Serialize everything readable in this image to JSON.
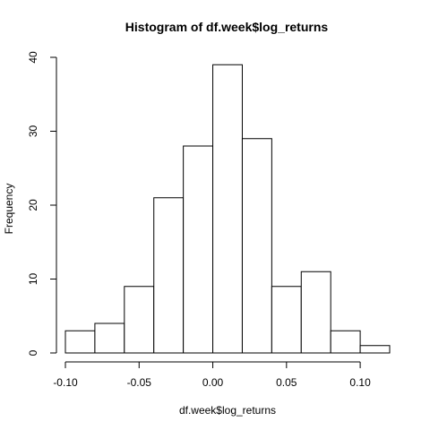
{
  "chart_data": {
    "type": "bar",
    "title": "Histogram of df.week$log_returns",
    "xlabel": "df.week$log_returns",
    "ylabel": "Frequency",
    "bins": [
      {
        "start": -0.1,
        "end": -0.08,
        "count": 3
      },
      {
        "start": -0.08,
        "end": -0.06,
        "count": 4
      },
      {
        "start": -0.06,
        "end": -0.04,
        "count": 9
      },
      {
        "start": -0.04,
        "end": -0.02,
        "count": 21
      },
      {
        "start": -0.02,
        "end": 0.0,
        "count": 28
      },
      {
        "start": 0.0,
        "end": 0.02,
        "count": 39
      },
      {
        "start": 0.02,
        "end": 0.04,
        "count": 29
      },
      {
        "start": 0.04,
        "end": 0.06,
        "count": 9
      },
      {
        "start": 0.06,
        "end": 0.08,
        "count": 11
      },
      {
        "start": 0.08,
        "end": 0.1,
        "count": 3
      },
      {
        "start": 0.1,
        "end": 0.12,
        "count": 1
      }
    ],
    "xlim": [
      -0.1,
      0.12
    ],
    "ylim": [
      0,
      40
    ],
    "x_ticks": [
      {
        "value": -0.1,
        "label": "-0.10"
      },
      {
        "value": -0.05,
        "label": "-0.05"
      },
      {
        "value": 0.0,
        "label": "0.00"
      },
      {
        "value": 0.05,
        "label": "0.05"
      },
      {
        "value": 0.1,
        "label": "0.10"
      }
    ],
    "y_ticks": [
      {
        "value": 0,
        "label": "0"
      },
      {
        "value": 10,
        "label": "10"
      },
      {
        "value": 20,
        "label": "20"
      },
      {
        "value": 30,
        "label": "30"
      },
      {
        "value": 40,
        "label": "40"
      }
    ],
    "grid": false,
    "legend": "none"
  }
}
